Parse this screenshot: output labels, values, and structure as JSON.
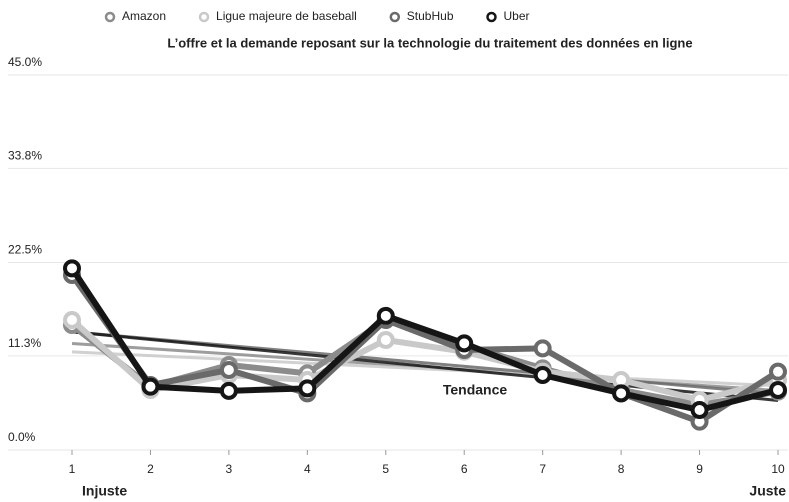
{
  "chart_data": {
    "type": "line",
    "title": "L’offre et la demande reposant sur la technologie du traitement des données en ligne",
    "x": [
      1,
      2,
      3,
      4,
      5,
      6,
      7,
      8,
      9,
      10
    ],
    "xlim": [
      1,
      10
    ],
    "xticks": [
      1,
      2,
      3,
      4,
      5,
      6,
      7,
      8,
      9,
      10
    ],
    "ylim": [
      0,
      45
    ],
    "yticks": [
      {
        "value": 0,
        "label": "0.0%"
      },
      {
        "value": 11.3,
        "label": "11.3%"
      },
      {
        "value": 22.5,
        "label": "22.5%"
      },
      {
        "value": 33.8,
        "label": "33.8%"
      },
      {
        "value": 45,
        "label": "45.0%"
      }
    ],
    "grid": true,
    "legend": "top",
    "trendline": true,
    "annotations": [
      {
        "text": "Tendance"
      },
      {
        "text": "Injuste",
        "x": 1
      },
      {
        "text": "Juste",
        "x": 10
      }
    ],
    "series": [
      {
        "name": "Amazon",
        "color": "#8c8c8c",
        "values": [
          15,
          7.6,
          10.2,
          9.2,
          15.6,
          12.6,
          9.8,
          7.2,
          5.4,
          7.0
        ]
      },
      {
        "name": "Ligue majeure de baseball",
        "color": "#c9c9c9",
        "values": [
          15.6,
          7.2,
          9,
          8.4,
          13.2,
          11.8,
          9.4,
          8.4,
          6,
          8.4
        ]
      },
      {
        "name": "StubHub",
        "color": "#6a6a6a",
        "values": [
          21,
          7.8,
          9.6,
          6.8,
          15.6,
          12,
          12.2,
          6.8,
          3.4,
          9.4
        ]
      },
      {
        "name": "Uber",
        "color": "#151515",
        "values": [
          21.8,
          7.6,
          7.1,
          7.4,
          16.1,
          12.8,
          9.0,
          6.8,
          4.8,
          7.2
        ]
      }
    ]
  }
}
